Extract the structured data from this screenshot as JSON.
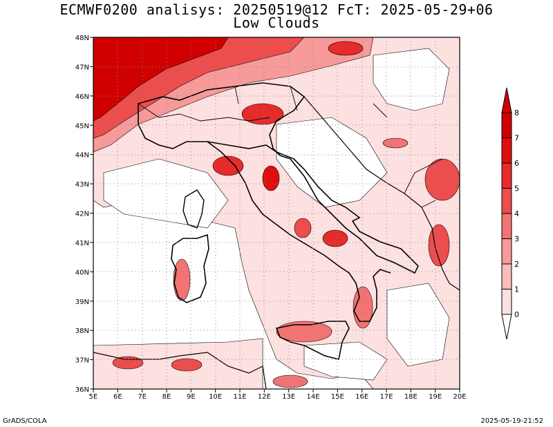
{
  "title": {
    "line1": "ECMWF0200 analisys: 20250519@12 FcT: 2025-05-29+06",
    "line2": "Low Clouds"
  },
  "axes": {
    "lon_labels": [
      "5E",
      "6E",
      "7E",
      "8E",
      "9E",
      "10E",
      "11E",
      "12E",
      "13E",
      "14E",
      "15E",
      "16E",
      "17E",
      "18E",
      "19E",
      "20E"
    ],
    "lat_labels": [
      "36N",
      "37N",
      "38N",
      "39N",
      "40N",
      "41N",
      "42N",
      "43N",
      "44N",
      "45N",
      "46N",
      "47N",
      "48N"
    ]
  },
  "colorbar": {
    "levels": [
      "0",
      "1",
      "2",
      "3",
      "4",
      "5",
      "6",
      "7",
      "8"
    ],
    "colors": [
      "#ffffff",
      "#fde0e0",
      "#fbbcbc",
      "#f79a9a",
      "#f27373",
      "#ec4d4d",
      "#e62b2b",
      "#e00f0f",
      "#d00000"
    ]
  },
  "footer": {
    "left": "GrADS/COLA",
    "right": "2025-05-19-21:52"
  }
}
